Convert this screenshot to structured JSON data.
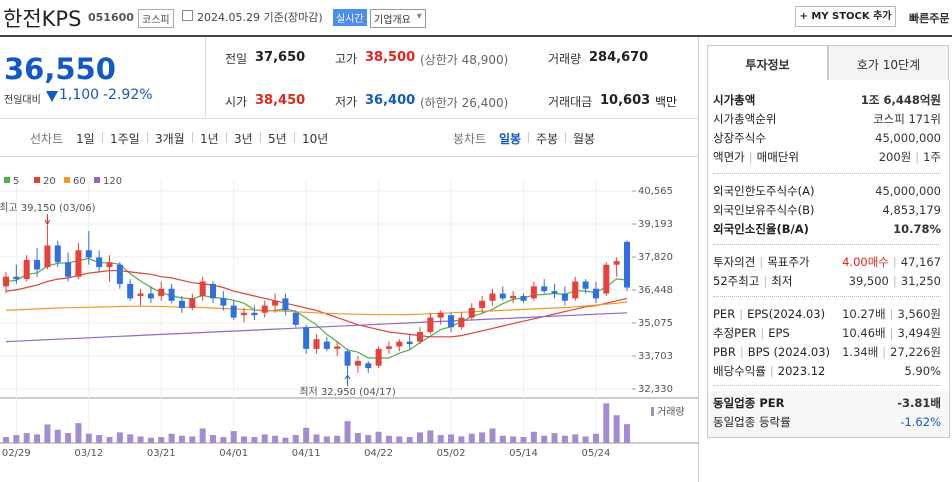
{
  "header": {
    "name": "한전KPS",
    "code": "051600",
    "market": "코스피",
    "date": "2024.05.29 기준(장마감)",
    "realtime": "실시간",
    "company_overview": "기업개요",
    "my_stock": "+ MY STOCK 추가",
    "quick_order": "빠른주문"
  },
  "quote": {
    "price": "36,550",
    "change_label": "전일대비",
    "change": "1,100",
    "rate": "-2.92%"
  },
  "quote_table": [
    [
      {
        "label": "전일",
        "value": "37,650"
      },
      {
        "label": "고가",
        "value": "38,500",
        "note": "(상한가 48,900)"
      },
      {
        "label": "거래량",
        "value": "284,670"
      }
    ],
    [
      {
        "label": "시가",
        "value": "38,450"
      },
      {
        "label": "저가",
        "value": "36,400",
        "note": "(하한가 26,400)"
      },
      {
        "label": "거래대금",
        "value": "10,603",
        "unit": "백만"
      }
    ]
  ],
  "chart_tabs": {
    "line_chart": "선차트",
    "periods": [
      "1일",
      "1주일",
      "3개월",
      "1년",
      "3년",
      "5년",
      "10년"
    ],
    "candle_chart": "봉차트",
    "candle_periods": [
      "일봉",
      "주봉",
      "월봉"
    ]
  },
  "chart_data": {
    "type": "candlestick",
    "categories": [
      null,
      "02/29",
      null,
      null,
      null,
      null,
      null,
      null,
      "03/12",
      null,
      null,
      null,
      null,
      null,
      null,
      "03/21",
      null,
      null,
      null,
      null,
      null,
      null,
      "04/01",
      null,
      null,
      null,
      null,
      null,
      null,
      "04/11",
      null,
      null,
      null,
      null,
      null,
      null,
      "04/22",
      null,
      null,
      null,
      null,
      null,
      null,
      "05/02",
      null,
      null,
      null,
      null,
      null,
      null,
      "05/14",
      null,
      null,
      null,
      null,
      null,
      null,
      "05/24",
      null,
      null,
      null
    ],
    "open": [
      36600,
      37000,
      36900,
      37700,
      37400,
      38300,
      37600,
      37000,
      38100,
      37800,
      37400,
      37500,
      36700,
      36200,
      36300,
      36200,
      36500,
      36000,
      35700,
      36200,
      36700,
      36100,
      35800,
      35400,
      35500,
      35500,
      35800,
      36100,
      35500,
      34900,
      34000,
      34300,
      34000,
      33900,
      33300,
      33400,
      33300,
      34000,
      34100,
      34300,
      34300,
      34700,
      35300,
      35400,
      34900,
      35300,
      35700,
      36000,
      36300,
      36100,
      36200,
      36100,
      36600,
      36400,
      36300,
      36100,
      36800,
      36500,
      36300,
      37500,
      38450
    ],
    "high": [
      37200,
      37500,
      37900,
      38200,
      39150,
      38500,
      38000,
      38400,
      38900,
      38100,
      37900,
      37600,
      36900,
      36500,
      36600,
      36800,
      36700,
      36200,
      36300,
      37000,
      36800,
      36400,
      36000,
      35700,
      35800,
      36000,
      36300,
      36300,
      35600,
      35000,
      34600,
      34500,
      34300,
      34000,
      33700,
      33500,
      34100,
      34300,
      34400,
      34600,
      34900,
      35500,
      35600,
      35500,
      35500,
      35900,
      36200,
      36500,
      36600,
      36400,
      36300,
      36800,
      36900,
      36700,
      36600,
      37000,
      36900,
      36800,
      37600,
      37800,
      38500
    ],
    "low": [
      36300,
      36700,
      36800,
      37000,
      37300,
      37400,
      36800,
      36900,
      37500,
      37200,
      36800,
      36500,
      36000,
      35800,
      35900,
      36000,
      35900,
      35500,
      35600,
      36000,
      35900,
      35600,
      35200,
      35100,
      35200,
      35300,
      35500,
      35400,
      34900,
      33800,
      33800,
      33900,
      33700,
      32950,
      33000,
      33000,
      33200,
      33800,
      33900,
      34000,
      34200,
      34600,
      35000,
      34700,
      34800,
      35200,
      35500,
      35800,
      36000,
      35900,
      35900,
      36000,
      36300,
      36100,
      35800,
      36000,
      36300,
      35900,
      36200,
      37000,
      36400
    ],
    "close": [
      37000,
      36900,
      37700,
      37300,
      38300,
      37600,
      37000,
      38100,
      37800,
      37400,
      37600,
      36700,
      36100,
      36300,
      36100,
      36500,
      36000,
      35700,
      36100,
      36800,
      36100,
      35800,
      35300,
      35500,
      35400,
      35800,
      36000,
      35600,
      35000,
      34000,
      34400,
      34000,
      34100,
      33300,
      33500,
      33200,
      34000,
      34100,
      34300,
      34200,
      34700,
      35300,
      35500,
      34900,
      35300,
      35700,
      36000,
      36300,
      36100,
      36200,
      36000,
      36600,
      36400,
      36300,
      36000,
      36800,
      36500,
      36100,
      37500,
      37650,
      36550
    ],
    "up_color": "#e8403a",
    "down_color": "#2f6fe0",
    "series": [
      {
        "name": "5",
        "color": "#4fb043",
        "values": [
          36800,
          36850,
          37100,
          37150,
          37440,
          37560,
          37580,
          37660,
          37760,
          37580,
          37580,
          37520,
          37120,
          36820,
          36560,
          36340,
          36200,
          36120,
          36080,
          36220,
          36140,
          36100,
          36020,
          35900,
          35620,
          35560,
          35600,
          35660,
          35560,
          35280,
          35000,
          34600,
          34300,
          33960,
          33860,
          33620,
          33620,
          33620,
          33820,
          33960,
          34260,
          34520,
          34800,
          34920,
          35140,
          35340,
          35480,
          35640,
          35880,
          36060,
          36120,
          36240,
          36260,
          36300,
          36260,
          36420,
          36400,
          36340,
          36580,
          36910,
          36860
        ]
      },
      {
        "name": "20",
        "color": "#e0433a",
        "values": [
          36400,
          36450,
          36550,
          36650,
          36800,
          36900,
          36950,
          37050,
          37150,
          37200,
          37250,
          37250,
          37200,
          37150,
          37100,
          37000,
          36950,
          36850,
          36750,
          36700,
          36650,
          36550,
          36400,
          36300,
          36200,
          36100,
          36000,
          35900,
          35800,
          35700,
          35600,
          35450,
          35300,
          35150,
          35000,
          34900,
          34800,
          34700,
          34650,
          34600,
          34550,
          34500,
          34500,
          34500,
          34550,
          34650,
          34750,
          34850,
          34950,
          35050,
          35150,
          35250,
          35350,
          35450,
          35550,
          35650,
          35750,
          35800,
          35900,
          36000,
          36100
        ]
      },
      {
        "name": "60",
        "color": "#f09a2a",
        "values": [
          35600,
          35620,
          35640,
          35660,
          35680,
          35700,
          35710,
          35720,
          35730,
          35740,
          35750,
          35760,
          35770,
          35770,
          35770,
          35760,
          35750,
          35740,
          35730,
          35720,
          35700,
          35680,
          35660,
          35640,
          35620,
          35600,
          35580,
          35560,
          35540,
          35520,
          35500,
          35480,
          35460,
          35450,
          35440,
          35430,
          35420,
          35420,
          35420,
          35430,
          35440,
          35460,
          35480,
          35500,
          35520,
          35540,
          35560,
          35580,
          35600,
          35620,
          35640,
          35660,
          35680,
          35700,
          35720,
          35750,
          35780,
          35820,
          35860,
          35900,
          35950
        ]
      },
      {
        "name": "120",
        "color": "#9467c8",
        "values": [
          34300,
          34320,
          34340,
          34360,
          34380,
          34400,
          34420,
          34440,
          34460,
          34480,
          34500,
          34520,
          34540,
          34560,
          34580,
          34600,
          34620,
          34640,
          34660,
          34680,
          34700,
          34720,
          34740,
          34760,
          34780,
          34800,
          34820,
          34840,
          34860,
          34880,
          34900,
          34920,
          34940,
          34960,
          34980,
          35000,
          35020,
          35040,
          35060,
          35080,
          35100,
          35120,
          35140,
          35160,
          35180,
          35200,
          35220,
          35240,
          35260,
          35280,
          35300,
          35320,
          35340,
          35360,
          35380,
          35400,
          35420,
          35440,
          35460,
          35480,
          35500
        ]
      }
    ],
    "ylim": [
      32330,
      40565
    ],
    "yticks": [
      {
        "value": 32330,
        "label": "32,330"
      },
      {
        "value": 33703,
        "label": "33,703"
      },
      {
        "value": 35075,
        "label": "35,075"
      },
      {
        "value": 36448,
        "label": "36,448"
      },
      {
        "value": 37820,
        "label": "37,820"
      },
      {
        "value": 39193,
        "label": "39,193"
      },
      {
        "value": 40565,
        "label": "40,565"
      }
    ],
    "grid": true,
    "annotations": [
      {
        "text": "최고 39,150 (03/06)",
        "value": 39150
      },
      {
        "text": "최저 32,950 (04/17)",
        "value": 32950
      }
    ],
    "volume": {
      "name": "거래량",
      "color": "#a58bd2",
      "values": [
        90000,
        120000,
        150000,
        130000,
        280000,
        200000,
        150000,
        300000,
        140000,
        120000,
        90000,
        160000,
        130000,
        100000,
        80000,
        90000,
        140000,
        110000,
        100000,
        220000,
        120000,
        90000,
        180000,
        100000,
        90000,
        130000,
        110000,
        80000,
        120000,
        230000,
        130000,
        100000,
        110000,
        330000,
        150000,
        120000,
        170000,
        110000,
        100000,
        90000,
        160000,
        190000,
        120000,
        130000,
        100000,
        140000,
        160000,
        220000,
        110000,
        100000,
        90000,
        170000,
        110000,
        150000,
        110000,
        130000,
        100000,
        140000,
        600000,
        420000,
        284670
      ]
    },
    "volume_ylim": [
      0,
      650000
    ]
  },
  "invest_info": {
    "tabs": [
      "투자정보",
      "호가 10단계"
    ],
    "groups": [
      [
        {
          "labels": [
            "시가총액"
          ],
          "values": [
            "1조 6,448억원"
          ]
        },
        {
          "labels": [
            "시가총액순위"
          ],
          "values": [
            "코스피 171위"
          ]
        },
        {
          "labels": [
            "상장주식수"
          ],
          "values": [
            "45,000,000"
          ]
        },
        {
          "labels": [
            "액면가",
            "매매단위"
          ],
          "values": [
            "200원",
            "1주"
          ]
        }
      ],
      [
        {
          "labels": [
            "외국인한도주식수(A)"
          ],
          "values": [
            "45,000,000"
          ]
        },
        {
          "labels": [
            "외국인보유주식수(B)"
          ],
          "values": [
            "4,853,179"
          ]
        },
        {
          "labels": [
            "외국인소진율(B/A)"
          ],
          "values": [
            "10.78%"
          ]
        }
      ],
      [
        {
          "labels": [
            "투자의견",
            "목표주가"
          ],
          "values": [
            "4.00매수",
            "47,167"
          ]
        },
        {
          "labels": [
            "52주최고",
            "최저"
          ],
          "values": [
            "39,500",
            "31,250"
          ]
        }
      ],
      [
        {
          "labels": [
            "PER",
            "EPS(2024.03)"
          ],
          "values": [
            "10.27배",
            "3,560원"
          ]
        },
        {
          "labels": [
            "추정PER",
            "EPS"
          ],
          "values": [
            "10.46배",
            "3,494원"
          ]
        },
        {
          "labels": [
            "PBR",
            "BPS (2024.03)"
          ],
          "values": [
            "1.34배",
            "27,226원"
          ]
        },
        {
          "labels": [
            "배당수익률",
            "2023.12"
          ],
          "values": [
            "5.90%"
          ]
        }
      ],
      [
        {
          "labels": [
            "동일업종 PER"
          ],
          "values": [
            "-3.81배"
          ]
        },
        {
          "labels": [
            "동일업종 등락률"
          ],
          "values": [
            "-1.62%"
          ]
        }
      ]
    ]
  }
}
